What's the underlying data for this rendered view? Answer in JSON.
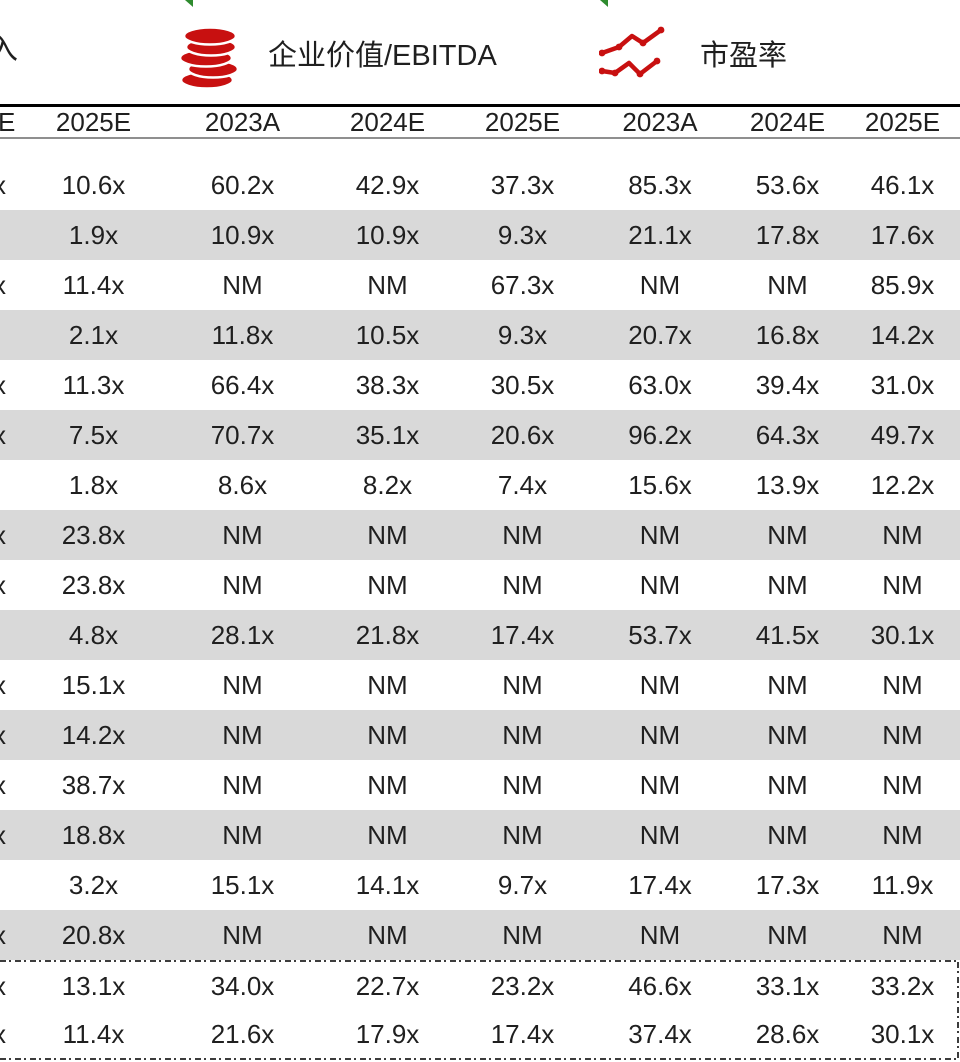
{
  "header": {
    "partial_left_label": "入",
    "sections": [
      {
        "icon": "coins-icon",
        "label": "企业价值/EBITDA"
      },
      {
        "icon": "line-chart-icon",
        "label": "市盈率"
      }
    ]
  },
  "table": {
    "year_columns": [
      "E",
      "2025E",
      "2023A",
      "2024E",
      "2025E",
      "2023A",
      "2024E",
      "2025E"
    ],
    "rows": [
      {
        "shade": false,
        "cells": [
          "x",
          "10.6x",
          "60.2x",
          "42.9x",
          "37.3x",
          "85.3x",
          "53.6x",
          "46.1x"
        ]
      },
      {
        "shade": true,
        "cells": [
          "",
          "1.9x",
          "10.9x",
          "10.9x",
          "9.3x",
          "21.1x",
          "17.8x",
          "17.6x"
        ]
      },
      {
        "shade": false,
        "cells": [
          "x",
          "11.4x",
          "NM",
          "NM",
          "67.3x",
          "NM",
          "NM",
          "85.9x"
        ]
      },
      {
        "shade": true,
        "cells": [
          "",
          "2.1x",
          "11.8x",
          "10.5x",
          "9.3x",
          "20.7x",
          "16.8x",
          "14.2x"
        ]
      },
      {
        "shade": false,
        "cells": [
          "x",
          "11.3x",
          "66.4x",
          "38.3x",
          "30.5x",
          "63.0x",
          "39.4x",
          "31.0x"
        ]
      },
      {
        "shade": true,
        "cells": [
          "x",
          "7.5x",
          "70.7x",
          "35.1x",
          "20.6x",
          "96.2x",
          "64.3x",
          "49.7x"
        ]
      },
      {
        "shade": false,
        "cells": [
          "",
          "1.8x",
          "8.6x",
          "8.2x",
          "7.4x",
          "15.6x",
          "13.9x",
          "12.2x"
        ]
      },
      {
        "shade": true,
        "cells": [
          "x",
          "23.8x",
          "NM",
          "NM",
          "NM",
          "NM",
          "NM",
          "NM"
        ]
      },
      {
        "shade": false,
        "cells": [
          "x",
          "23.8x",
          "NM",
          "NM",
          "NM",
          "NM",
          "NM",
          "NM"
        ]
      },
      {
        "shade": true,
        "cells": [
          "",
          "4.8x",
          "28.1x",
          "21.8x",
          "17.4x",
          "53.7x",
          "41.5x",
          "30.1x"
        ]
      },
      {
        "shade": false,
        "cells": [
          "x",
          "15.1x",
          "NM",
          "NM",
          "NM",
          "NM",
          "NM",
          "NM"
        ]
      },
      {
        "shade": true,
        "cells": [
          "x",
          "14.2x",
          "NM",
          "NM",
          "NM",
          "NM",
          "NM",
          "NM"
        ]
      },
      {
        "shade": false,
        "cells": [
          "x",
          "38.7x",
          "NM",
          "NM",
          "NM",
          "NM",
          "NM",
          "NM"
        ]
      },
      {
        "shade": true,
        "cells": [
          "x",
          "18.8x",
          "NM",
          "NM",
          "NM",
          "NM",
          "NM",
          "NM"
        ]
      },
      {
        "shade": false,
        "cells": [
          "",
          "3.2x",
          "15.1x",
          "14.1x",
          "9.7x",
          "17.4x",
          "17.3x",
          "11.9x"
        ]
      },
      {
        "shade": true,
        "cells": [
          "x",
          "20.8x",
          "NM",
          "NM",
          "NM",
          "NM",
          "NM",
          "NM"
        ]
      }
    ],
    "summary_rows": [
      {
        "shade": false,
        "cells": [
          "x",
          "13.1x",
          "34.0x",
          "22.7x",
          "23.2x",
          "46.6x",
          "33.1x",
          "33.2x"
        ]
      },
      {
        "shade": false,
        "cells": [
          "x",
          "11.4x",
          "21.6x",
          "17.9x",
          "17.4x",
          "37.4x",
          "28.6x",
          "30.1x"
        ]
      }
    ]
  },
  "colors": {
    "accent_red": "#c81010",
    "shade_gray": "#d9d9d9",
    "green_mark": "#2e8b2e",
    "text": "#1f1f1f"
  }
}
